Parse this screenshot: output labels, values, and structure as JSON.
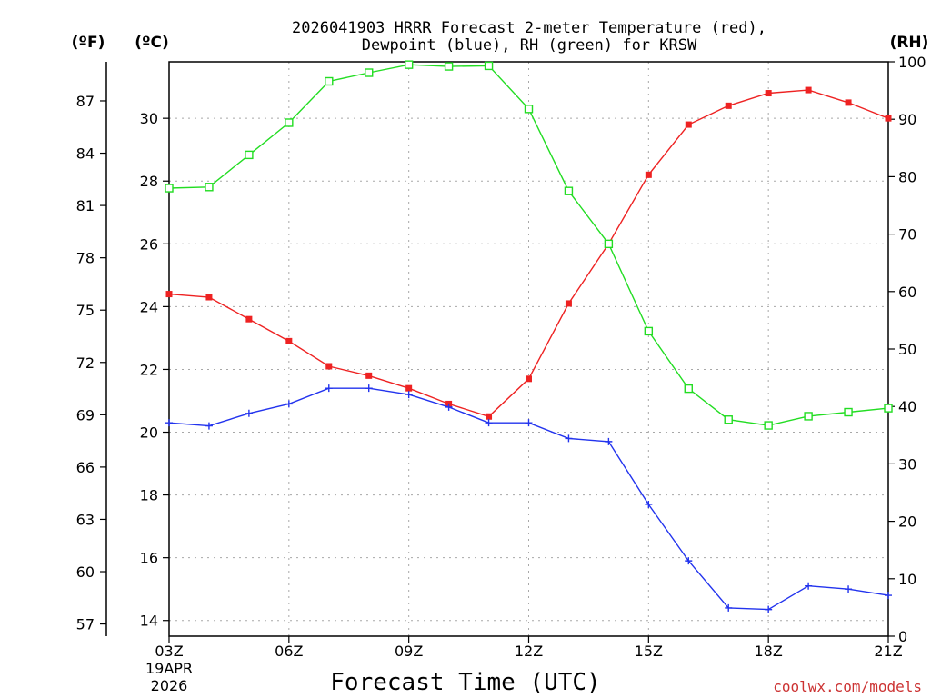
{
  "chart_data": {
    "type": "line",
    "title_line1": "2026041903 HRRR Forecast 2-meter Temperature (red),",
    "title_line2": "Dewpoint (blue), RH (green) for KRSW",
    "xlabel": "Forecast Time (UTC)",
    "units": {
      "fahrenheit": "(ºF)",
      "celsius": "(ºC)",
      "rh": "(RH)"
    },
    "date_line1": "19APR",
    "date_line2": "2026",
    "credit": "coolwx.com/models",
    "x_hours": [
      3,
      4,
      5,
      6,
      7,
      8,
      9,
      10,
      11,
      12,
      13,
      14,
      15,
      16,
      17,
      18,
      19,
      20,
      21
    ],
    "x_ticks": [
      {
        "hour": 3,
        "label": "03Z"
      },
      {
        "hour": 6,
        "label": "06Z"
      },
      {
        "hour": 9,
        "label": "09Z"
      },
      {
        "hour": 12,
        "label": "12Z"
      },
      {
        "hour": 15,
        "label": "15Z"
      },
      {
        "hour": 18,
        "label": "18Z"
      },
      {
        "hour": 21,
        "label": "21Z"
      }
    ],
    "xlim": [
      3,
      21
    ],
    "celsius_lim": [
      13.5,
      31.8
    ],
    "rh_lim": [
      0,
      100
    ],
    "celsius_ticks": [
      14,
      16,
      18,
      20,
      22,
      24,
      26,
      28,
      30
    ],
    "fahrenheit_ticks": [
      57,
      60,
      63,
      66,
      69,
      72,
      75,
      78,
      81,
      84,
      87
    ],
    "rh_ticks": [
      0,
      10,
      20,
      30,
      40,
      50,
      60,
      70,
      80,
      90,
      100
    ],
    "series": [
      {
        "name": "Temperature",
        "axis": "celsius",
        "color": "#ee2222",
        "marker": "filled-square",
        "values": [
          24.4,
          24.3,
          23.6,
          22.9,
          22.1,
          21.8,
          21.4,
          20.9,
          20.5,
          21.7,
          24.1,
          26.0,
          28.2,
          29.8,
          30.4,
          30.8,
          30.9,
          30.5,
          30.0
        ]
      },
      {
        "name": "Dewpoint",
        "axis": "celsius",
        "color": "#2233ee",
        "marker": "plus",
        "values": [
          20.3,
          20.2,
          20.6,
          20.9,
          21.4,
          21.4,
          21.2,
          20.8,
          20.3,
          20.3,
          19.8,
          19.7,
          17.7,
          15.9,
          14.4,
          14.35,
          15.1,
          15.0,
          14.8
        ]
      },
      {
        "name": "Relative Humidity",
        "axis": "rh",
        "color": "#22dd22",
        "marker": "open-square",
        "values": [
          78,
          78.2,
          83.8,
          89.4,
          96.6,
          98.1,
          99.5,
          99.2,
          99.3,
          91.8,
          77.5,
          68.3,
          53.1,
          43.1,
          37.7,
          36.7,
          38.3,
          39.0,
          39.7
        ]
      }
    ]
  }
}
